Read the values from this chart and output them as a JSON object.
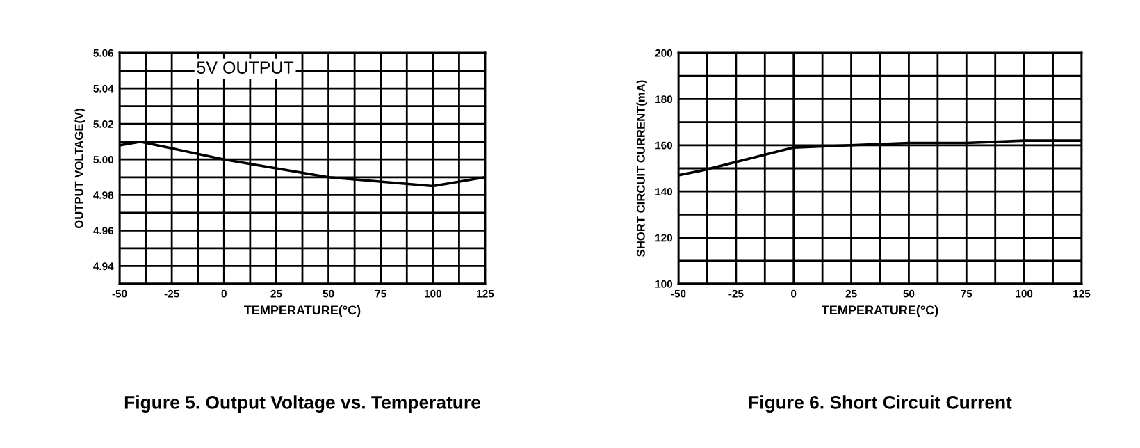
{
  "chart_data": [
    {
      "type": "line",
      "title": "Figure 5. Output Voltage vs. Temperature",
      "xlabel": "TEMPERATURE(°C)",
      "ylabel": "OUTPUT VOLTAGE(V)",
      "annotations": [
        "5V OUTPUT"
      ],
      "x": [
        -50,
        -40,
        0,
        50,
        100,
        125
      ],
      "series": [
        {
          "color": "#000000",
          "values": [
            5.008,
            5.01,
            5.0,
            4.99,
            4.985,
            4.99
          ]
        }
      ],
      "xlim": [
        -50,
        125
      ],
      "ylim": [
        4.93,
        5.06
      ],
      "xticks": [
        -50,
        {
          "value": -37.5,
          "label": null
        },
        -25,
        {
          "value": -12.5,
          "label": null
        },
        0,
        {
          "value": 12.5,
          "label": null
        },
        25,
        {
          "value": 37.5,
          "label": null
        },
        50,
        {
          "value": 62.5,
          "label": null
        },
        75,
        {
          "value": 87.5,
          "label": null
        },
        100,
        {
          "value": 112.5,
          "label": null
        },
        125
      ],
      "yticks": [
        {
          "value": 4.93,
          "label": null
        },
        4.94,
        {
          "value": 4.95,
          "label": null
        },
        4.96,
        {
          "value": 4.97,
          "label": null
        },
        4.98,
        {
          "value": 4.99,
          "label": null
        },
        {
          "value": 5.0,
          "label": "5.00"
        },
        {
          "value": 5.01,
          "label": null
        },
        5.02,
        {
          "value": 5.03,
          "label": null
        },
        5.04,
        {
          "value": 5.05,
          "label": null
        },
        5.06
      ],
      "grid": true,
      "marker": "none",
      "line_style": "solid"
    },
    {
      "type": "line",
      "title": "Figure 6. Short Circuit Current",
      "xlabel": "TEMPERATURE(°C)",
      "ylabel": "SHORT CIRCUIT CURRENT(mA)",
      "x": [
        -50,
        -40,
        0,
        25,
        50,
        75,
        100,
        125
      ],
      "series": [
        {
          "color": "#000000",
          "values": [
            147,
            149,
            159,
            160,
            161,
            161,
            162,
            162
          ]
        }
      ],
      "xlim": [
        -50,
        125
      ],
      "ylim": [
        100,
        200
      ],
      "xticks": [
        -50,
        {
          "value": -37.5,
          "label": null
        },
        -25,
        {
          "value": -12.5,
          "label": null
        },
        0,
        {
          "value": 12.5,
          "label": null
        },
        25,
        {
          "value": 37.5,
          "label": null
        },
        50,
        {
          "value": 62.5,
          "label": null
        },
        75,
        {
          "value": 87.5,
          "label": null
        },
        100,
        {
          "value": 112.5,
          "label": null
        },
        125
      ],
      "yticks": [
        100,
        {
          "value": 110,
          "label": null
        },
        120,
        {
          "value": 130,
          "label": null
        },
        140,
        {
          "value": 150,
          "label": null
        },
        160,
        {
          "value": 170,
          "label": null
        },
        180,
        {
          "value": 190,
          "label": null
        },
        200
      ],
      "grid": true,
      "marker": "none",
      "line_style": "solid"
    }
  ]
}
